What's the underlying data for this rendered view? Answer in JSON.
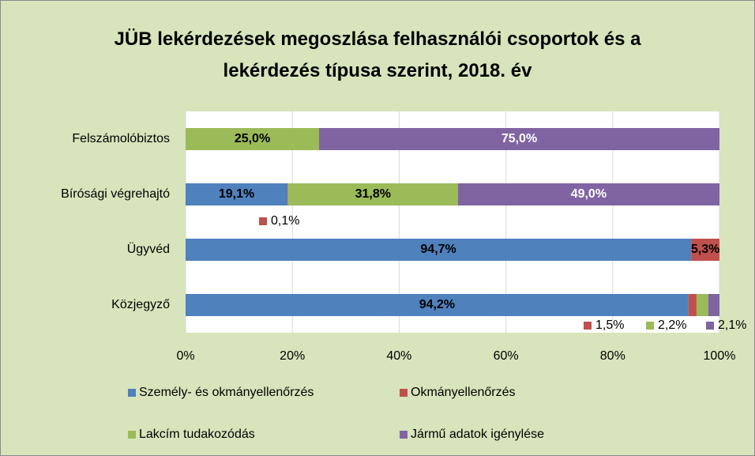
{
  "chart_data": {
    "type": "stacked-bar-horizontal",
    "title": "JÜB lekérdezések megoszlása felhasználói csoportok és a lekérdezés típusa szerint, 2018. év",
    "categories": [
      "Felszámolóbiztos",
      "Bírósági végrehajtó",
      "Ügyvéd",
      "Közjegyző"
    ],
    "series": [
      {
        "name": "Személy- és okmányellenőrzés",
        "color": "#4f81bd",
        "values": [
          null,
          19.1,
          94.7,
          94.2
        ],
        "value_labels": [
          null,
          "19,1%",
          "94,7%",
          "94,2%"
        ]
      },
      {
        "name": "Okmányellenőrzés",
        "color": "#c0504d",
        "values": [
          null,
          0.1,
          5.3,
          1.5
        ],
        "value_labels": [
          null,
          "0,1%",
          "5,3%",
          "1,5%"
        ]
      },
      {
        "name": "Lakcím tudakozódás",
        "color": "#9bbb59",
        "values": [
          25.0,
          31.8,
          null,
          2.2
        ],
        "value_labels": [
          "25,0%",
          "31,8%",
          null,
          "2,2%"
        ]
      },
      {
        "name": "Jármű adatok igénylése",
        "color": "#8064a2",
        "values": [
          75.0,
          49.0,
          null,
          2.1
        ],
        "value_labels": [
          "75,0%",
          "49,0%",
          null,
          "2,1%"
        ]
      }
    ],
    "xlim": [
      0,
      100
    ],
    "xticks": [
      {
        "value": 0,
        "label": "0%"
      },
      {
        "value": 20,
        "label": "20%"
      },
      {
        "value": 40,
        "label": "40%"
      },
      {
        "value": 60,
        "label": "60%"
      },
      {
        "value": 80,
        "label": "80%"
      },
      {
        "value": 100,
        "label": "100%"
      }
    ],
    "grid": true,
    "legend": "bottom"
  }
}
